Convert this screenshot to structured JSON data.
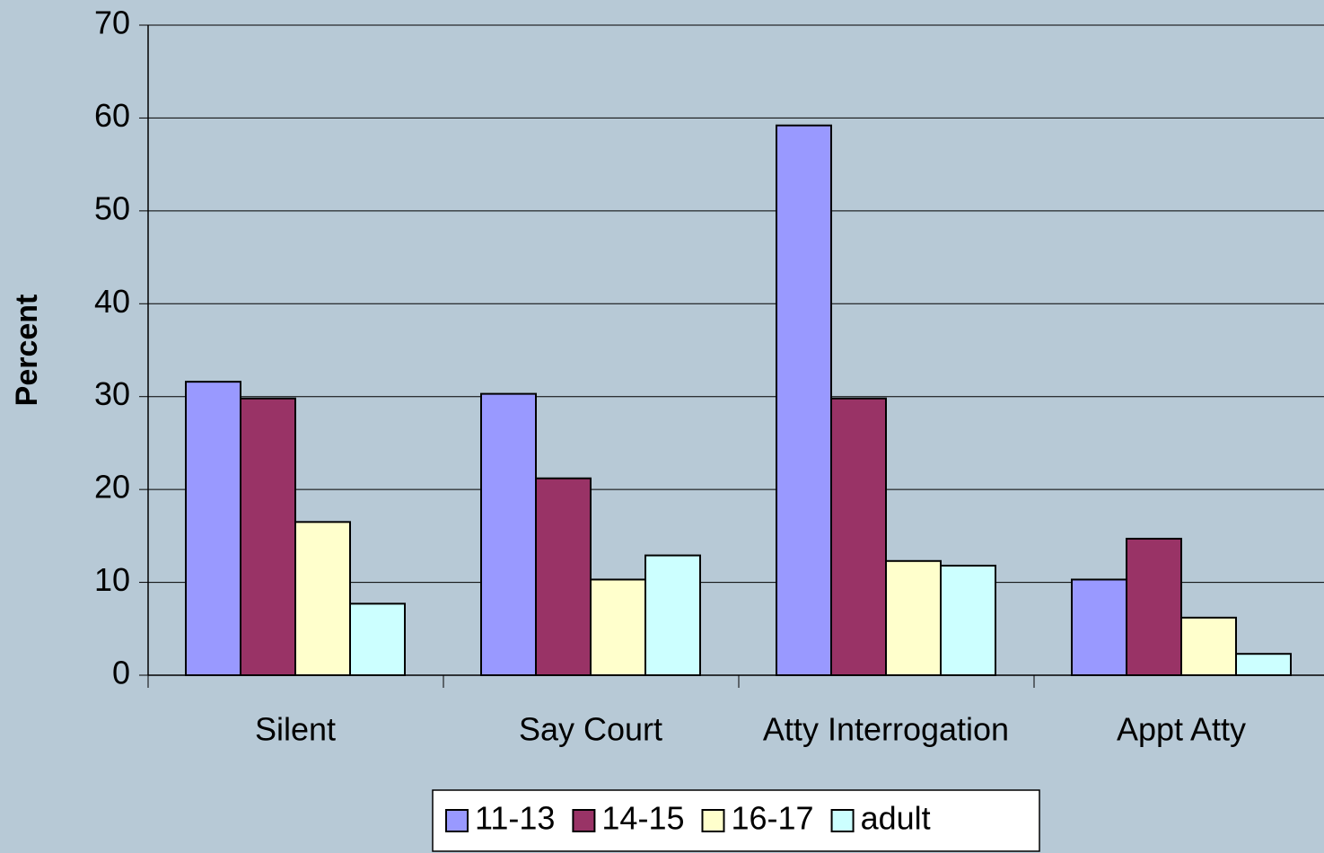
{
  "chart_data": {
    "type": "bar",
    "y_label": "Percent",
    "categories": [
      "Silent",
      "Say Court",
      "Atty Interrogation",
      "Appt Atty"
    ],
    "series": [
      {
        "name": "11-13",
        "color": "#9999ff",
        "values": [
          31.6,
          30.3,
          59.2,
          10.3
        ]
      },
      {
        "name": "14-15",
        "color": "#993366",
        "values": [
          29.8,
          21.2,
          29.8,
          14.7
        ]
      },
      {
        "name": "16-17",
        "color": "#ffffcc",
        "values": [
          16.5,
          10.3,
          12.3,
          6.2
        ]
      },
      {
        "name": "adult",
        "color": "#ccffff",
        "values": [
          7.7,
          12.9,
          11.8,
          2.3
        ]
      }
    ],
    "ylim": [
      0,
      70
    ],
    "yticks": [
      0,
      10,
      20,
      30,
      40,
      50,
      60,
      70
    ],
    "grid": true,
    "legend": "bottom"
  }
}
